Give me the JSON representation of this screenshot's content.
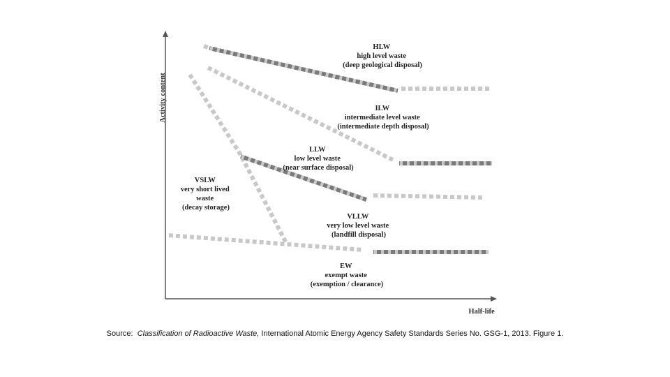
{
  "axes": {
    "y_label": "Activity content",
    "x_label": "Half-life"
  },
  "regions": {
    "hlw": {
      "lines": [
        "HLW",
        "high level waste",
        "(deep geological disposal)"
      ]
    },
    "ilw": {
      "lines": [
        "ILW",
        "intermediate level waste",
        "(intermediate depth disposal)"
      ]
    },
    "llw": {
      "lines": [
        "LLW",
        "low level waste",
        "(near surface disposal)"
      ]
    },
    "vslw": {
      "lines": [
        "VSLW",
        "very short lived",
        "waste",
        "(decay storage)"
      ]
    },
    "vllw": {
      "lines": [
        "VLLW",
        "very low level waste",
        "(landfill disposal)"
      ]
    },
    "ew": {
      "lines": [
        "EW",
        "exempt waste",
        "(exemption / clearance)"
      ]
    }
  },
  "caption": {
    "prefix": "Source:  ",
    "title": "Classification of Radioactive Waste,",
    "rest": " International Atomic Energy Agency Safety Standards Series No. GSG-1, 2013. Figure 1."
  },
  "colors": {
    "light": "#c8c8c8",
    "dark": "#7a7a7a",
    "axis": "#555555"
  }
}
